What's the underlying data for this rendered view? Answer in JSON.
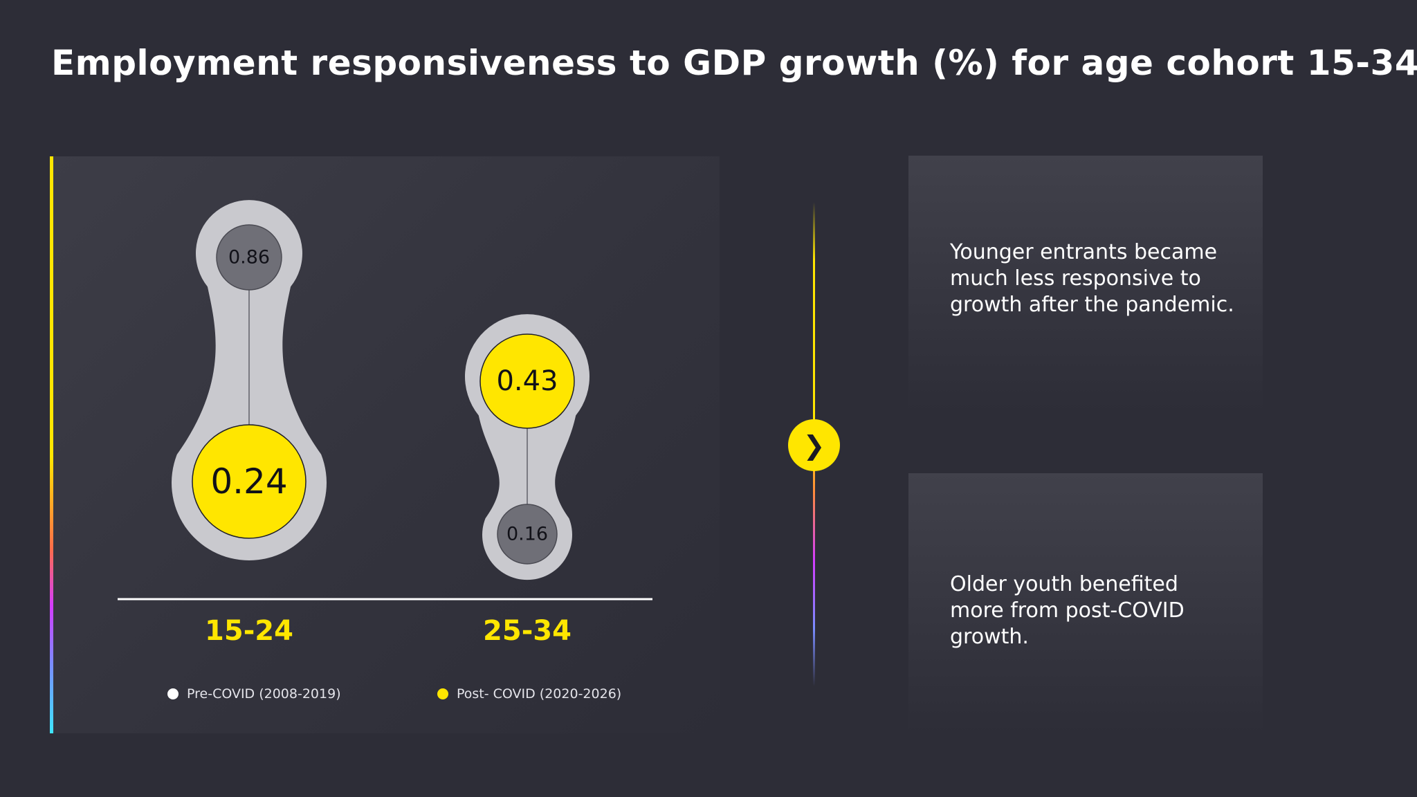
{
  "title": "Employment responsiveness to GDP growth (%) for age cohort 15-34",
  "chart_data": {
    "type": "bubble-comparison",
    "title": "Employment responsiveness to GDP growth (%) for age cohort 15-34",
    "categories": [
      "15-24",
      "25-34"
    ],
    "series": [
      {
        "name": "Pre-COVID (2008-2019)",
        "values": [
          0.86,
          0.16
        ]
      },
      {
        "name": "Post- COVID (2020-2026)",
        "values": [
          0.24,
          0.43
        ]
      }
    ]
  },
  "colors": {
    "post": "#ffe600",
    "pre": "#6f6f77",
    "bubble_shell": "#c9c9ce",
    "category_label": "#ffe600"
  },
  "legend": {
    "pre_label": "Pre-COVID (2008-2019)",
    "post_label": "Post- COVID (2020-2026)"
  },
  "arrow_icon": "chevron-right-icon",
  "insights": [
    {
      "text": "Younger entrants became much less responsive to growth after the pandemic."
    },
    {
      "text": "Older youth benefited more from post-COVID growth."
    }
  ]
}
